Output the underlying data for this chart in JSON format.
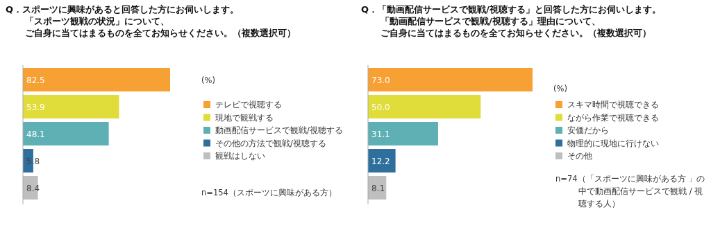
{
  "chart_data": [
    {
      "type": "bar",
      "orientation": "horizontal",
      "stacked": true,
      "title": "Q．スポーツに興味があると回答した方にお伺いします。「スポーツ観戦の状況」について、ご自身に当てはまるものを全てお知らせください。（複数選択可）",
      "categories": [
        null,
        null,
        null,
        null,
        null
      ],
      "series": [
        {
          "name": "テレビで視聴する",
          "color": "#f7a033",
          "values": [
            82.5,
            null,
            null,
            null,
            null
          ]
        },
        {
          "name": "現地で観戦する",
          "color": "#e0dc3a",
          "values": [
            null,
            53.9,
            null,
            null,
            null
          ]
        },
        {
          "name": "動画配信サービスで観戦/視聴する",
          "color": "#5fb0b5",
          "values": [
            null,
            null,
            48.1,
            null,
            null
          ]
        },
        {
          "name": "その他の方法で観戦/視聴する",
          "color": "#2e6f9d",
          "values": [
            null,
            null,
            null,
            5.8,
            null
          ]
        },
        {
          "name": "観戦はしない",
          "color": "#bfbfbf",
          "values": [
            null,
            null,
            null,
            null,
            8.4
          ]
        }
      ],
      "data_labels": true,
      "legend": "right",
      "annotations": [
        "(%)",
        "n=154（スポーツに興味がある方）"
      ]
    },
    {
      "type": "bar",
      "orientation": "horizontal",
      "stacked": true,
      "title": "Q．「動画配信サービスで観戦/視聴する」と回答した方にお伺いします。「動画配信サービスで観戦/視聴する」理由について、ご自身に当てはまるものを全てお知らせください。（複数選択可）",
      "categories": [
        null,
        null,
        null,
        null,
        null
      ],
      "series": [
        {
          "name": "スキマ時間で視聴できる",
          "color": "#f7a033",
          "values": [
            73.0,
            null,
            null,
            null,
            null
          ],
          "value_labels": [
            "73.0",
            null,
            null,
            null,
            null
          ]
        },
        {
          "name": "ながら作業で視聴できる",
          "color": "#e0dc3a",
          "values": [
            null,
            50.0,
            null,
            null,
            null
          ],
          "value_labels": [
            null,
            "50.0",
            null,
            null,
            null
          ]
        },
        {
          "name": "安価だから",
          "color": "#5fb0b5",
          "values": [
            null,
            null,
            31.1,
            null,
            null
          ],
          "value_labels": [
            null,
            null,
            "31.1",
            null,
            null
          ]
        },
        {
          "name": "物理的に現地に行けない",
          "color": "#2e6f9d",
          "values": [
            null,
            null,
            null,
            12.2,
            null
          ],
          "value_labels": [
            null,
            null,
            null,
            "12.2",
            null
          ]
        },
        {
          "name": "その他",
          "color": "#bfbfbf",
          "values": [
            null,
            null,
            null,
            null,
            8.1
          ],
          "value_labels": [
            null,
            null,
            null,
            null,
            "8.1"
          ]
        }
      ],
      "legend": "right",
      "annotations": [
        "(%)",
        "n=74（「スポーツに興味がある方 」の中で動画配信サービスで観戦 / 視聴する人）"
      ]
    }
  ]
}
